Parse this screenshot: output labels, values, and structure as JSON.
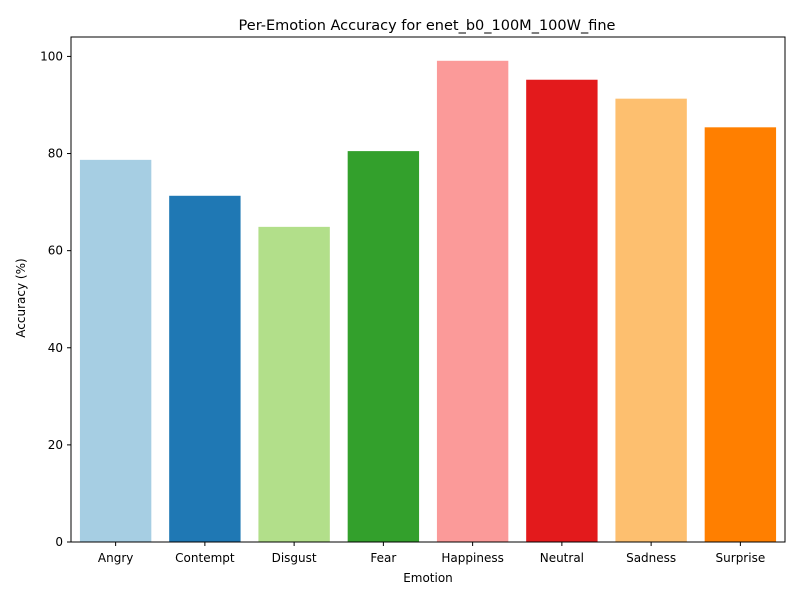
{
  "chart_data": {
    "type": "bar",
    "title": "Per-Emotion Accuracy for enet_b0_100M_100W_fine",
    "xlabel": "Emotion",
    "ylabel": "Accuracy (%)",
    "categories": [
      "Angry",
      "Contempt",
      "Disgust",
      "Fear",
      "Happiness",
      "Neutral",
      "Sadness",
      "Surprise"
    ],
    "values": [
      78.7,
      71.3,
      64.9,
      80.5,
      99.1,
      95.2,
      91.3,
      85.4
    ],
    "colors": [
      "#a6cee3",
      "#1f78b4",
      "#b2df8a",
      "#33a02c",
      "#fb9a99",
      "#e31a1c",
      "#fdbf6f",
      "#ff7f00"
    ],
    "ylim": [
      0,
      104
    ],
    "yticks": [
      0,
      20,
      40,
      60,
      80,
      100
    ],
    "grid": false,
    "legend": "none"
  }
}
